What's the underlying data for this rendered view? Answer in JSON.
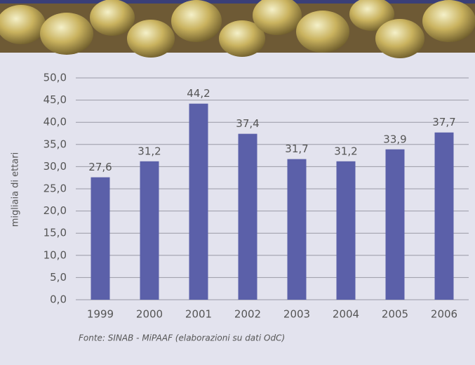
{
  "chart_data": {
    "type": "bar",
    "y_label": "migliaia di ettari",
    "source": "Fonte: SINAB - MiPAAF (elaborazioni su dati OdC)",
    "categories": [
      "1999",
      "2000",
      "2001",
      "2002",
      "2003",
      "2004",
      "2005",
      "2006"
    ],
    "values": [
      27.6,
      31.2,
      44.2,
      37.4,
      31.7,
      31.2,
      33.9,
      37.7
    ],
    "value_labels": [
      "27,6",
      "31,2",
      "44,2",
      "37,4",
      "31,7",
      "31,2",
      "33,9",
      "37,7"
    ],
    "color": "#5b60a9",
    "ylim": [
      0,
      50
    ],
    "yticks": [
      {
        "value": 0,
        "label": "0,0"
      },
      {
        "value": 5,
        "label": "5,0"
      },
      {
        "value": 10,
        "label": "10,0"
      },
      {
        "value": 15,
        "label": "15,0"
      },
      {
        "value": 20,
        "label": "20,0"
      },
      {
        "value": 25,
        "label": "25,0"
      },
      {
        "value": 30,
        "label": "30,0"
      },
      {
        "value": 35,
        "label": "35,0"
      },
      {
        "value": 40,
        "label": "40,0"
      },
      {
        "value": 45,
        "label": "45,0"
      },
      {
        "value": 50,
        "label": "50,0"
      }
    ],
    "grid": true
  }
}
